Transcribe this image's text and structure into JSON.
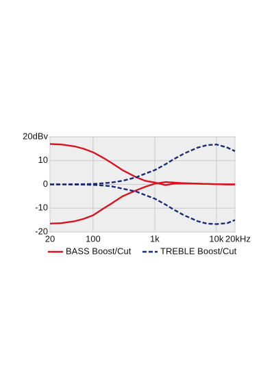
{
  "chart_data": {
    "type": "line",
    "log_x": true,
    "grid": true,
    "x": [
      20,
      30,
      50,
      70,
      100,
      150,
      200,
      300,
      500,
      700,
      1000,
      1500,
      2000,
      3000,
      5000,
      7000,
      10000,
      15000,
      20000
    ],
    "series": [
      {
        "name": "BASS Boost/Cut",
        "color": "#d7141e",
        "dashed": false,
        "values": [
          17,
          16.8,
          16,
          15,
          13.5,
          11,
          9,
          6,
          3,
          1.5,
          0.8,
          -0.3,
          0.3,
          0.4,
          0.3,
          0.2,
          0.1,
          0,
          0
        ]
      },
      {
        "color": "#d7141e",
        "dashed": false,
        "values": [
          -16.5,
          -16.3,
          -15.5,
          -14.5,
          -13,
          -10,
          -8,
          -5,
          -2.5,
          -1,
          0.3,
          1,
          0.8,
          0.5,
          0.3,
          0.2,
          0.1,
          0,
          0
        ]
      },
      {
        "name": "TREBLE Boost/Cut",
        "color": "#1a2a7a",
        "dashed": true,
        "values": [
          0,
          0,
          0.1,
          0.1,
          0.2,
          0.5,
          0.8,
          1.5,
          3,
          4.5,
          6,
          8.5,
          10.5,
          13,
          15.5,
          16.5,
          16.8,
          15.5,
          14
        ]
      },
      {
        "color": "#1a2a7a",
        "dashed": true,
        "values": [
          0,
          0,
          -0.1,
          -0.1,
          -0.2,
          -0.5,
          -0.8,
          -1.8,
          -3,
          -4.5,
          -6,
          -8.5,
          -10.5,
          -13,
          -15.5,
          -16.5,
          -16.7,
          -16.3,
          -15
        ]
      }
    ],
    "xlim": [
      20,
      20000
    ],
    "ylim": [
      -20,
      20
    ],
    "xticks": [
      20,
      100,
      {
        "value": 1000,
        "label": "1k"
      },
      {
        "value": 10000,
        "label": "10k"
      },
      {
        "value": 20000,
        "label": "20kHz"
      }
    ],
    "yticks": [
      {
        "value": 20,
        "label": "20dBv"
      },
      10,
      0,
      -10,
      -20
    ]
  }
}
